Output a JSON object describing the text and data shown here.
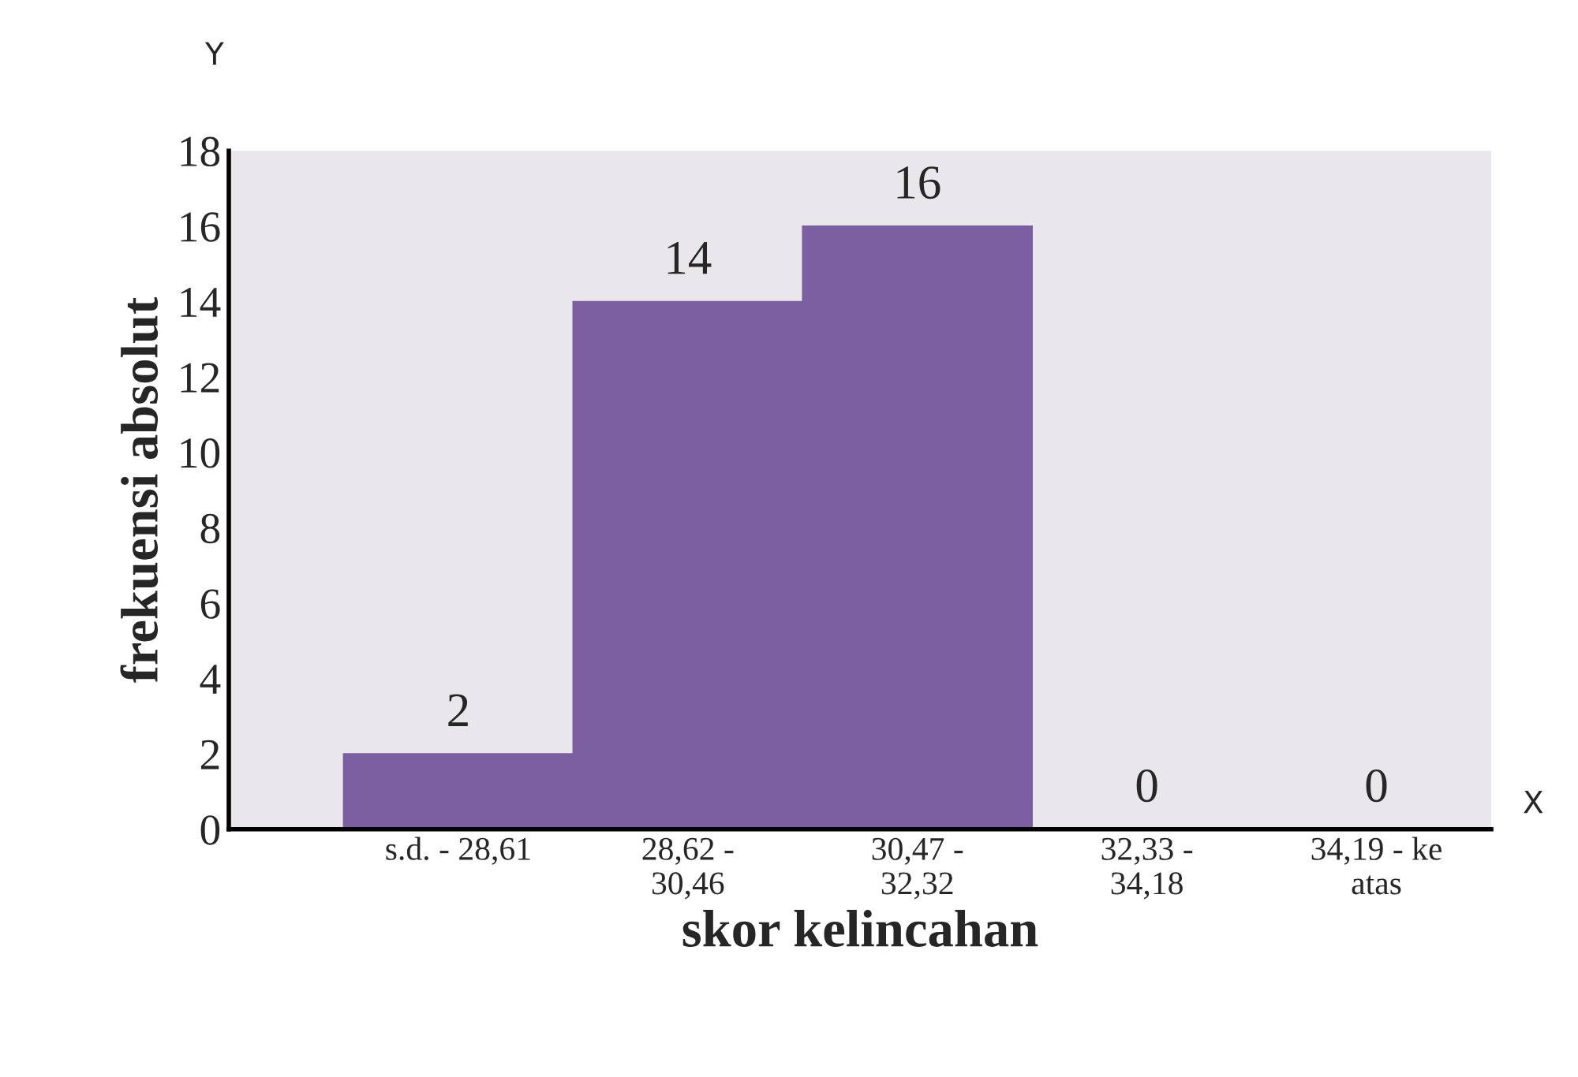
{
  "chart_data": {
    "type": "bar",
    "xlabel": "skor kelincahan",
    "ylabel": "frekuensi absolut",
    "categories": [
      "s.d. - 28,61",
      "28,62 -\n30,46",
      "30,47 -\n32,32",
      "32,33 -\n34,18",
      "34,19 - ke\natas"
    ],
    "values": [
      2,
      14,
      16,
      0,
      0
    ],
    "color": "#7b5fa0",
    "data_labels": true,
    "ylim": [
      0,
      18
    ],
    "yticks": [
      0,
      2,
      4,
      6,
      8,
      10,
      12,
      14,
      16,
      18
    ],
    "grid": false,
    "legend": false,
    "annotations": [
      "Y",
      "X"
    ]
  }
}
